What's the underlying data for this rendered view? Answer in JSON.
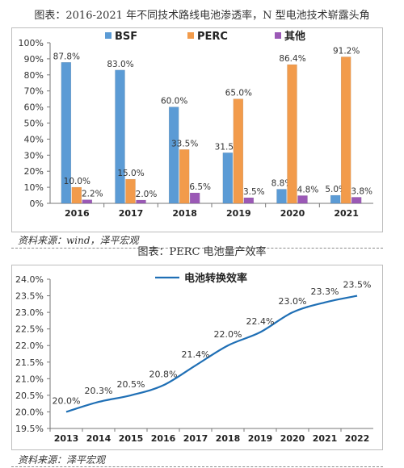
{
  "header": {
    "title": "图表：2016-2021 年不同技术路线电池渗透率，N 型电池技术崭露头角",
    "source1": "资料来源：wind，泽平宏观",
    "subtitle": "图表：PERC 电池量产效率",
    "source2": "资料来源：泽平宏观"
  },
  "chart_data": [
    {
      "type": "bar",
      "title": "",
      "categories": [
        "2016",
        "2017",
        "2018",
        "2019",
        "2020",
        "2021"
      ],
      "series": [
        {
          "name": "BSF",
          "values": [
            87.8,
            83.0,
            60.0,
            31.5,
            8.8,
            5.0
          ],
          "labels": [
            "87.8%",
            "83.0%",
            "60.0%",
            "31.5%",
            "8.8%",
            "5.0%"
          ],
          "color": "#5b9bd5"
        },
        {
          "name": "PERC",
          "values": [
            10.0,
            15.0,
            33.5,
            65.0,
            86.4,
            91.2
          ],
          "labels": [
            "10.0%",
            "15.0%",
            "33.5%",
            "65.0%",
            "86.4%",
            "91.2%"
          ],
          "color": "#f29b4b"
        },
        {
          "name": "其他",
          "values": [
            2.2,
            2.0,
            6.5,
            3.5,
            4.8,
            3.8
          ],
          "labels": [
            "2.2%",
            "2.0%",
            "6.5%",
            "3.5%",
            "4.8%",
            "3.8%"
          ],
          "color": "#9b59b6"
        }
      ],
      "ylim": [
        0,
        100
      ],
      "yticks": [
        "0%",
        "10%",
        "20%",
        "30%",
        "40%",
        "50%",
        "60%",
        "70%",
        "80%",
        "90%",
        "100%"
      ],
      "legend": "top"
    },
    {
      "type": "line",
      "title": "",
      "categories": [
        "2013",
        "2014",
        "2015",
        "2016",
        "2017",
        "2018",
        "2019",
        "2020",
        "2021",
        "2022"
      ],
      "series": [
        {
          "name": "电池转换效率",
          "values": [
            20.0,
            20.3,
            20.5,
            20.8,
            21.4,
            22.0,
            22.4,
            23.0,
            23.3,
            23.5
          ],
          "labels": [
            "20.0%",
            "20.3%",
            "20.5%",
            "20.8%",
            "21.4%",
            "22.0%",
            "22.4%",
            "23.0%",
            "23.3%",
            "23.5%"
          ],
          "color": "#1f6fb5"
        }
      ],
      "ylim": [
        19.5,
        24.0
      ],
      "yticks": [
        "19.5%",
        "20.0%",
        "20.5%",
        "21.0%",
        "21.5%",
        "22.0%",
        "22.5%",
        "23.0%",
        "23.5%",
        "24.0%"
      ],
      "legend": "top"
    }
  ]
}
